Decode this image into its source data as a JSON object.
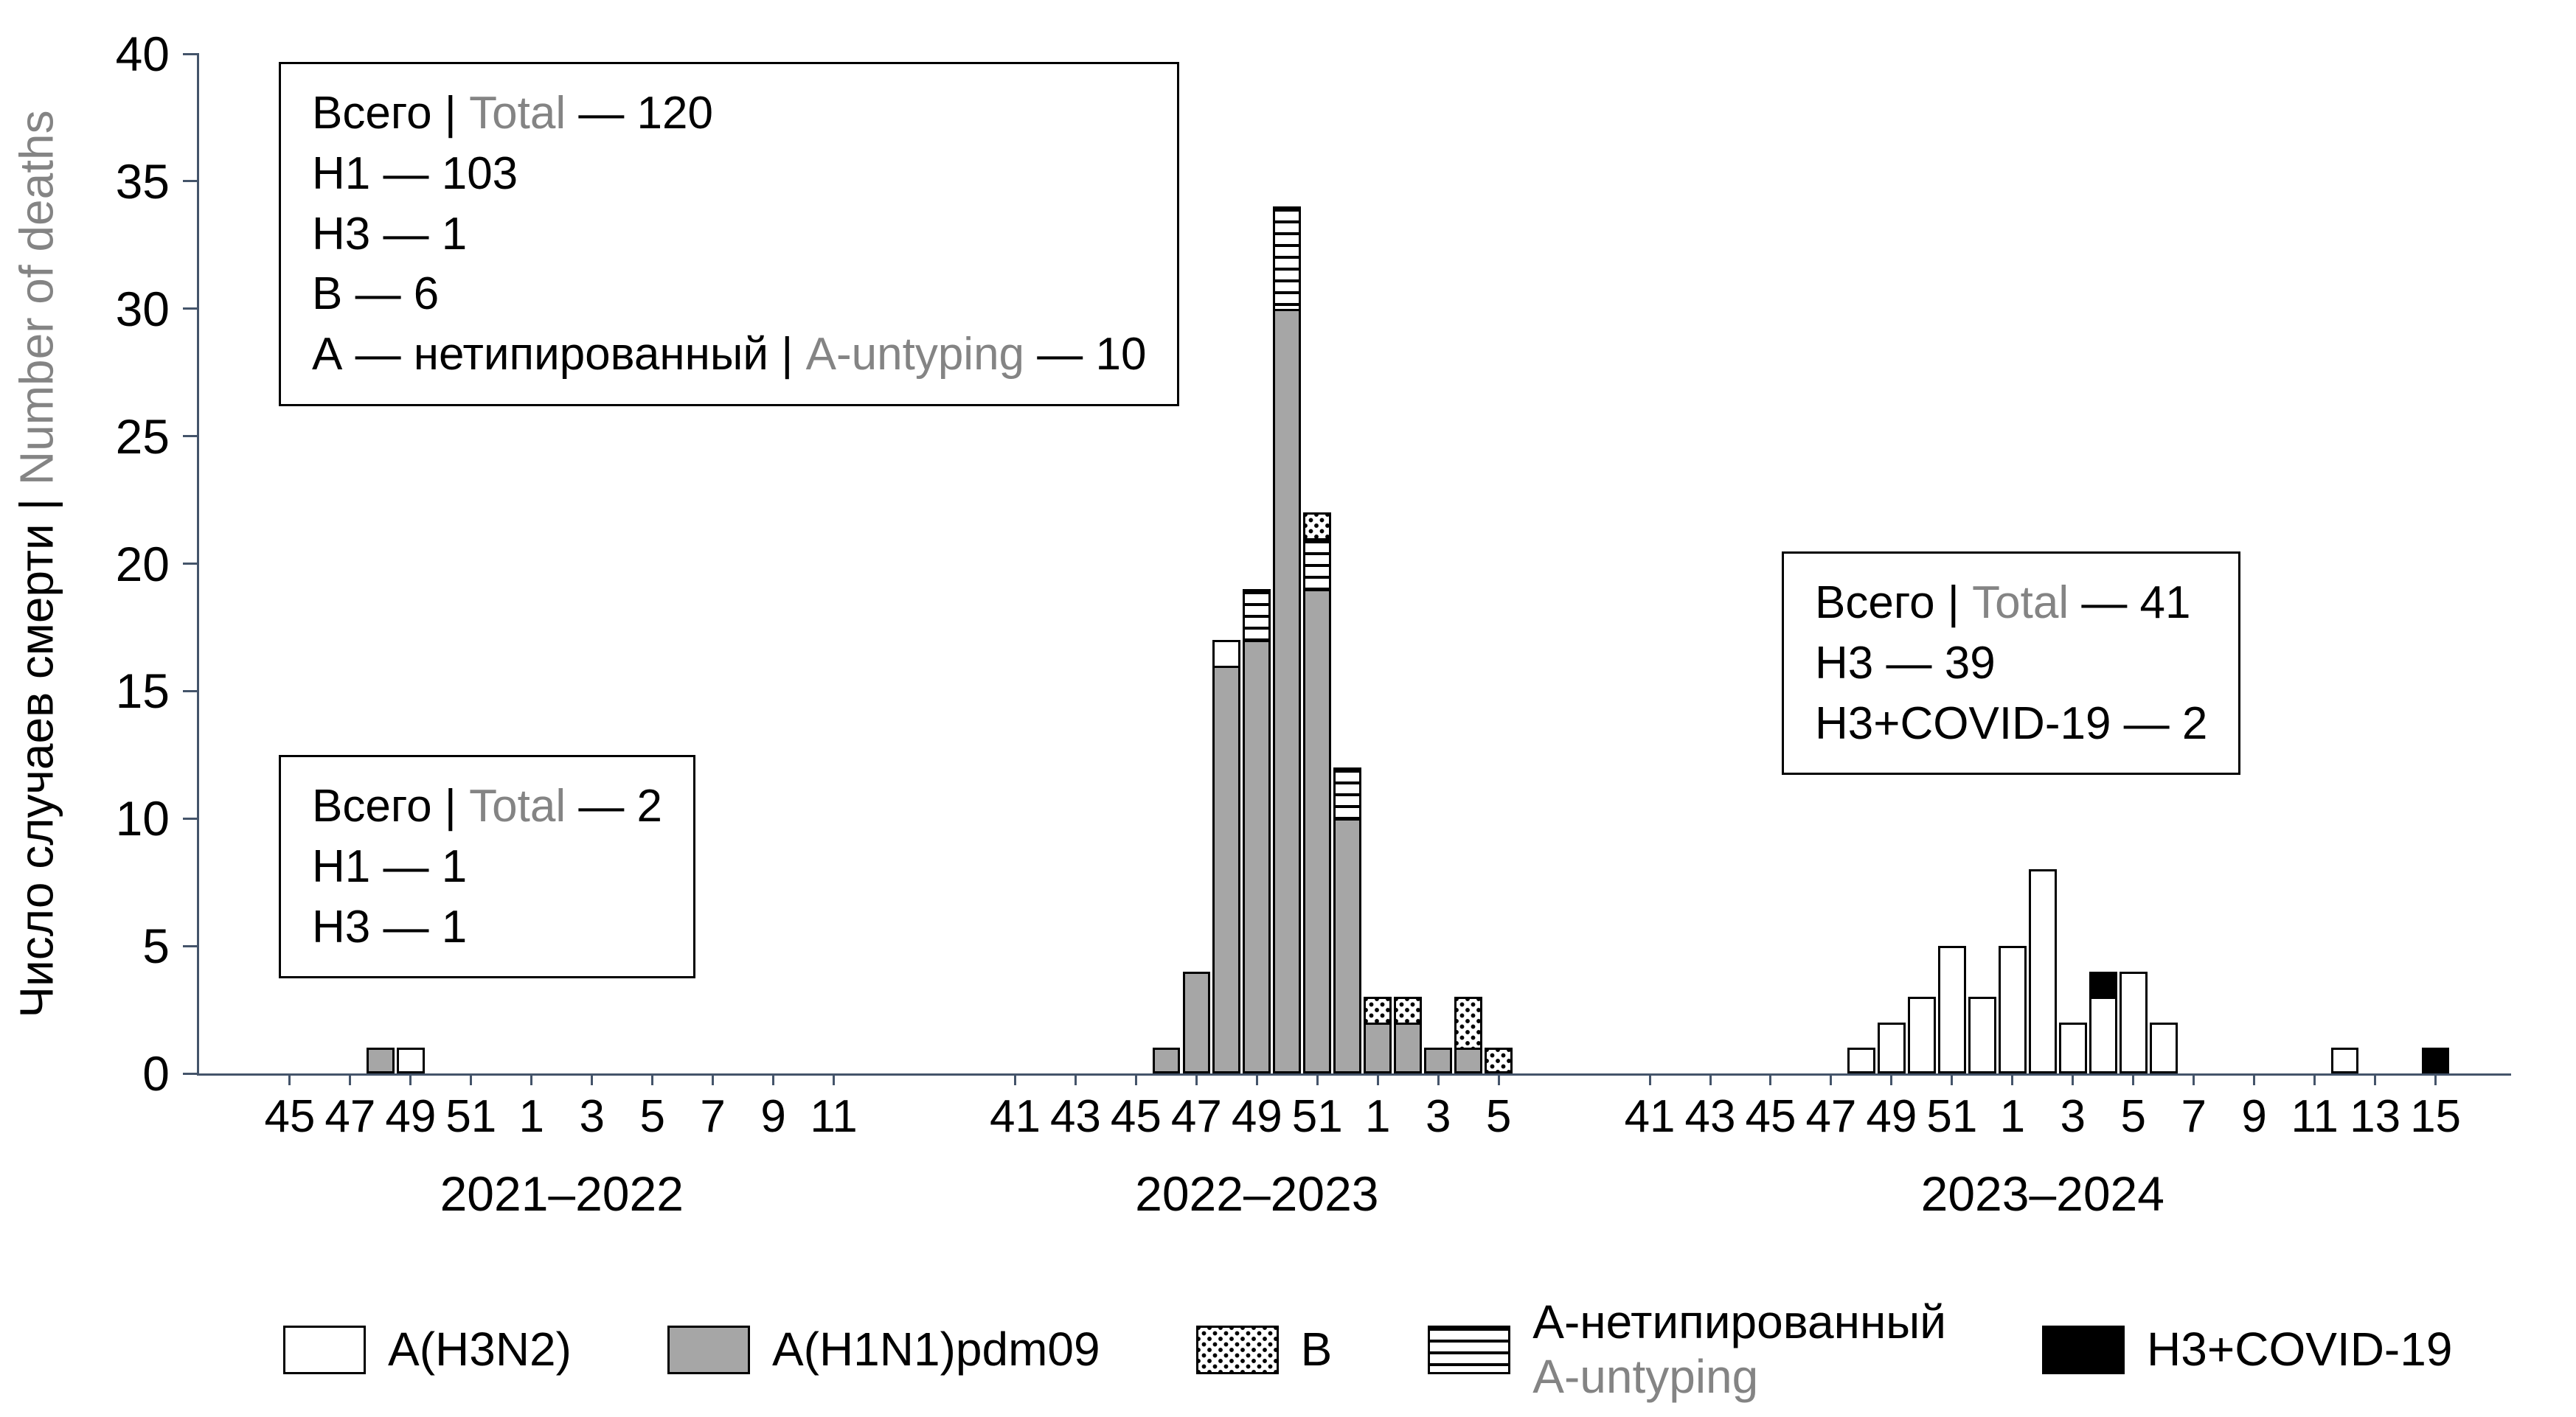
{
  "ylabel": {
    "parts": [
      {
        "t": "Число случаев смерти | "
      },
      {
        "t": "Number of deaths",
        "muted": true
      }
    ]
  },
  "chart_data": {
    "type": "bar",
    "stacked": true,
    "title": "",
    "ylabel": "Число случаев смерти | Number of deaths",
    "ylim": [
      0,
      40
    ],
    "yticks": [
      0,
      5,
      10,
      15,
      20,
      25,
      30,
      35,
      40
    ],
    "grid": false,
    "legend_position": "bottom",
    "colors": {
      "bar_gray": "#a6a6a6",
      "bar_black": "#000000",
      "bar_white": "#ffffff",
      "axis": "#44546a",
      "muted_text": "#848484"
    },
    "stack_order": [
      "H1N1",
      "H3N2",
      "A_unt",
      "B",
      "H3COVID"
    ],
    "series": [
      {
        "key": "H3N2",
        "pattern": "white",
        "legend": [
          [
            {
              "t": "A(H3N2)"
            }
          ]
        ]
      },
      {
        "key": "H1N1",
        "pattern": "gray",
        "legend": [
          [
            {
              "t": "A(H1N1)pdm09"
            }
          ]
        ]
      },
      {
        "key": "B",
        "pattern": "dots",
        "legend": [
          [
            {
              "t": "B"
            }
          ]
        ]
      },
      {
        "key": "A_unt",
        "pattern": "hlines",
        "legend": [
          [
            {
              "t": "А-нетипированный"
            }
          ],
          [
            {
              "t": "A-untyping",
              "muted": true
            }
          ]
        ]
      },
      {
        "key": "H3COVID",
        "pattern": "black",
        "legend": [
          [
            {
              "t": "H3+COVID-19"
            }
          ]
        ]
      }
    ],
    "seasons": [
      {
        "label": "2021–2022",
        "week_start": 44,
        "week_end": 12,
        "ticks": [
          "45",
          "47",
          "49",
          "51",
          "1",
          "3",
          "5",
          "7",
          "9",
          "11"
        ],
        "bars": [
          {
            "week": 48,
            "segments": {
              "H1N1": 1
            }
          },
          {
            "week": 49,
            "segments": {
              "H3N2": 1
            }
          }
        ]
      },
      {
        "label": "2022–2023",
        "week_start": 40,
        "week_end": 6,
        "ticks": [
          "41",
          "43",
          "45",
          "47",
          "49",
          "51",
          "1",
          "3",
          "5"
        ],
        "bars": [
          {
            "week": 46,
            "segments": {
              "H1N1": 1
            }
          },
          {
            "week": 47,
            "segments": {
              "H1N1": 4
            }
          },
          {
            "week": 48,
            "segments": {
              "H1N1": 16,
              "H3N2": 1
            }
          },
          {
            "week": 49,
            "segments": {
              "H1N1": 17,
              "A_unt": 2
            }
          },
          {
            "week": 50,
            "segments": {
              "H1N1": 30,
              "A_unt": 4
            }
          },
          {
            "week": 51,
            "segments": {
              "H1N1": 19,
              "A_unt": 2,
              "B": 1
            }
          },
          {
            "week": 52,
            "segments": {
              "H1N1": 10,
              "A_unt": 2
            }
          },
          {
            "week": 1,
            "segments": {
              "H1N1": 2,
              "B": 1
            }
          },
          {
            "week": 2,
            "segments": {
              "H1N1": 2,
              "B": 1
            }
          },
          {
            "week": 3,
            "segments": {
              "H1N1": 1
            }
          },
          {
            "week": 4,
            "segments": {
              "H1N1": 1,
              "B": 2
            }
          },
          {
            "week": 5,
            "segments": {
              "B": 1
            }
          }
        ]
      },
      {
        "label": "2023–2024",
        "week_start": 40,
        "week_end": 16,
        "ticks": [
          "41",
          "43",
          "45",
          "47",
          "49",
          "51",
          "1",
          "3",
          "5",
          "7",
          "9",
          "11",
          "13",
          "15"
        ],
        "bars": [
          {
            "week": 48,
            "segments": {
              "H3N2": 1
            }
          },
          {
            "week": 49,
            "segments": {
              "H3N2": 2
            }
          },
          {
            "week": 50,
            "segments": {
              "H3N2": 3
            }
          },
          {
            "week": 51,
            "segments": {
              "H3N2": 5
            }
          },
          {
            "week": 52,
            "segments": {
              "H3N2": 3
            }
          },
          {
            "week": 1,
            "segments": {
              "H3N2": 5
            }
          },
          {
            "week": 2,
            "segments": {
              "H3N2": 8
            }
          },
          {
            "week": 3,
            "segments": {
              "H3N2": 2
            }
          },
          {
            "week": 4,
            "segments": {
              "H3N2": 3,
              "H3COVID": 1
            }
          },
          {
            "week": 5,
            "segments": {
              "H3N2": 4
            }
          },
          {
            "week": 6,
            "segments": {
              "H3N2": 2
            }
          },
          {
            "week": 12,
            "segments": {
              "H3N2": 1
            }
          },
          {
            "week": 15,
            "segments": {
              "H3COVID": 1
            }
          }
        ]
      }
    ]
  },
  "annotations": [
    {
      "id": "season-2022-2023-totals",
      "lines": [
        [
          {
            "t": "Всего | "
          },
          {
            "t": "Total",
            "muted": true
          },
          {
            "t": " — 120"
          }
        ],
        [
          {
            "t": "H1 — 103"
          }
        ],
        [
          {
            "t": "H3 — 1"
          }
        ],
        [
          {
            "t": "B — 6"
          }
        ],
        [
          {
            "t": "А — нетипированный | "
          },
          {
            "t": "A-untyping",
            "muted": true
          },
          {
            "t": " — 10"
          }
        ]
      ]
    },
    {
      "id": "season-2021-2022-totals",
      "lines": [
        [
          {
            "t": "Всего | "
          },
          {
            "t": "Total",
            "muted": true
          },
          {
            "t": " — 2"
          }
        ],
        [
          {
            "t": "H1 — 1"
          }
        ],
        [
          {
            "t": "H3 — 1"
          }
        ]
      ]
    },
    {
      "id": "season-2023-2024-totals",
      "lines": [
        [
          {
            "t": "Всего | "
          },
          {
            "t": "Total",
            "muted": true
          },
          {
            "t": " — 41"
          }
        ],
        [
          {
            "t": "H3 — 39"
          }
        ],
        [
          {
            "t": "H3+COVID-19 — 2"
          }
        ]
      ]
    }
  ]
}
